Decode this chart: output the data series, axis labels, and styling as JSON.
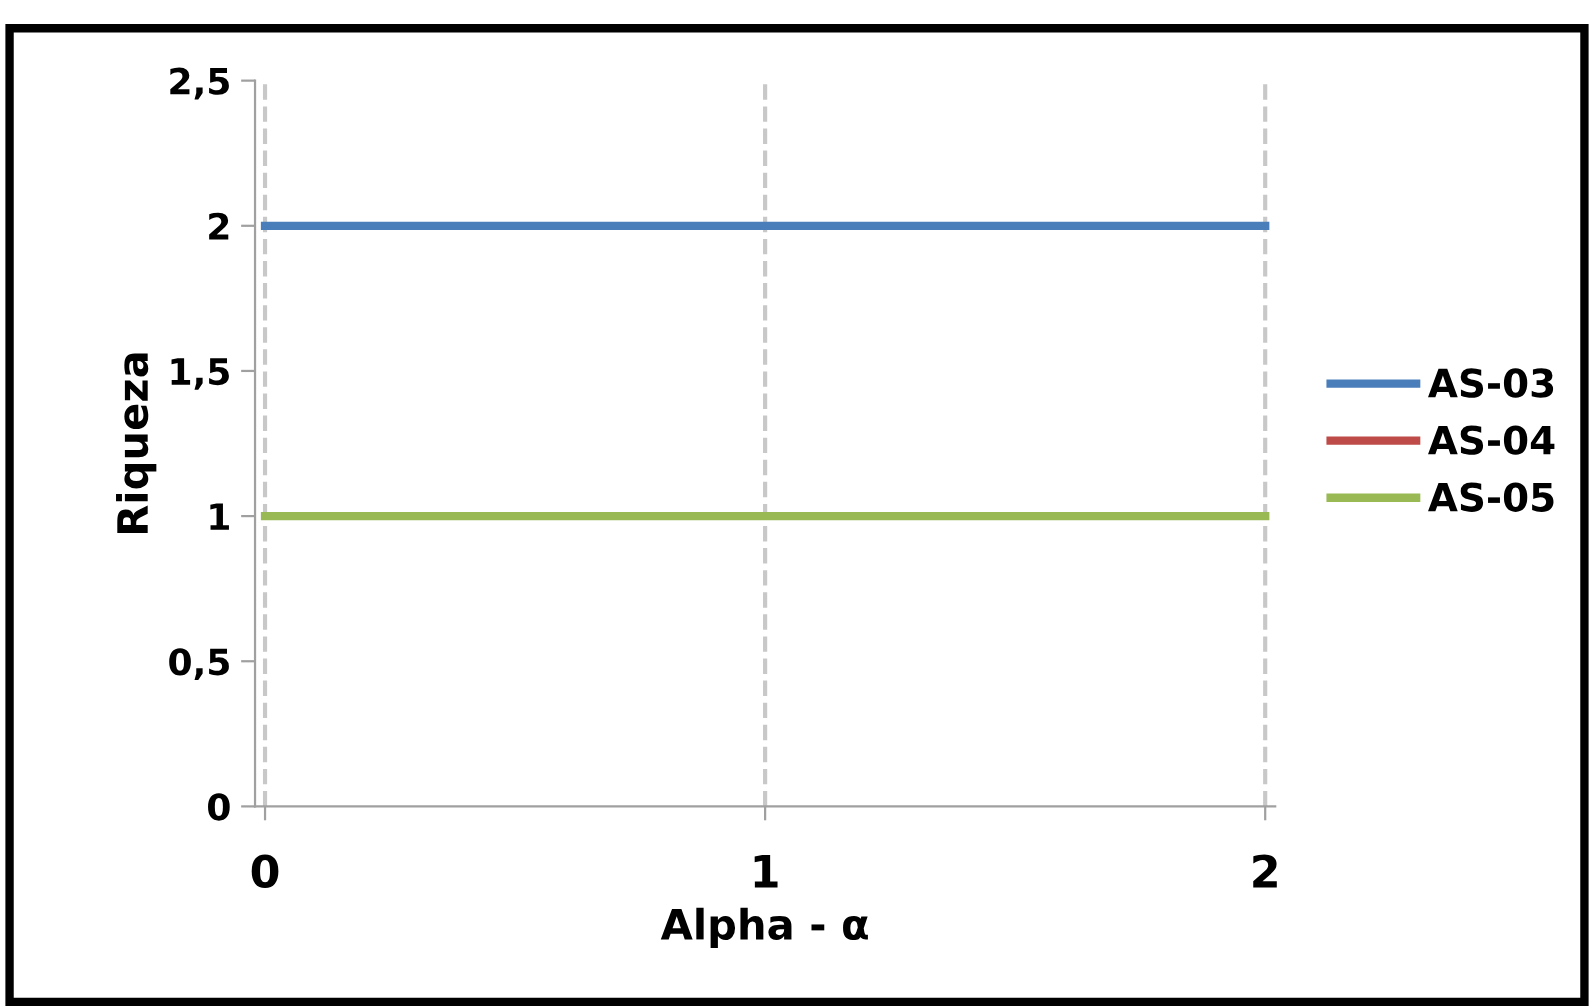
{
  "chart_data": {
    "type": "line",
    "xlabel": "Alpha - α",
    "ylabel": "Riqueza",
    "categories": [
      "0",
      "1",
      "2"
    ],
    "series": [
      {
        "name": "AS-03",
        "color": "#4a7ebb",
        "values": [
          2,
          2,
          2
        ]
      },
      {
        "name": "AS-04",
        "color": "#be4b48",
        "values": [
          null,
          null,
          null
        ]
      },
      {
        "name": "AS-05",
        "color": "#98b954",
        "values": [
          1,
          1,
          1
        ]
      }
    ],
    "ylim": [
      0,
      2.5
    ],
    "yticks": [
      0,
      {
        "value": 0.5,
        "label": "0,5"
      },
      1,
      {
        "value": 1.5,
        "label": "1,5"
      },
      2,
      {
        "value": 2.5,
        "label": "2,5"
      }
    ],
    "grid": "x",
    "legend": "right",
    "marker": "none",
    "line_style": "solid"
  }
}
